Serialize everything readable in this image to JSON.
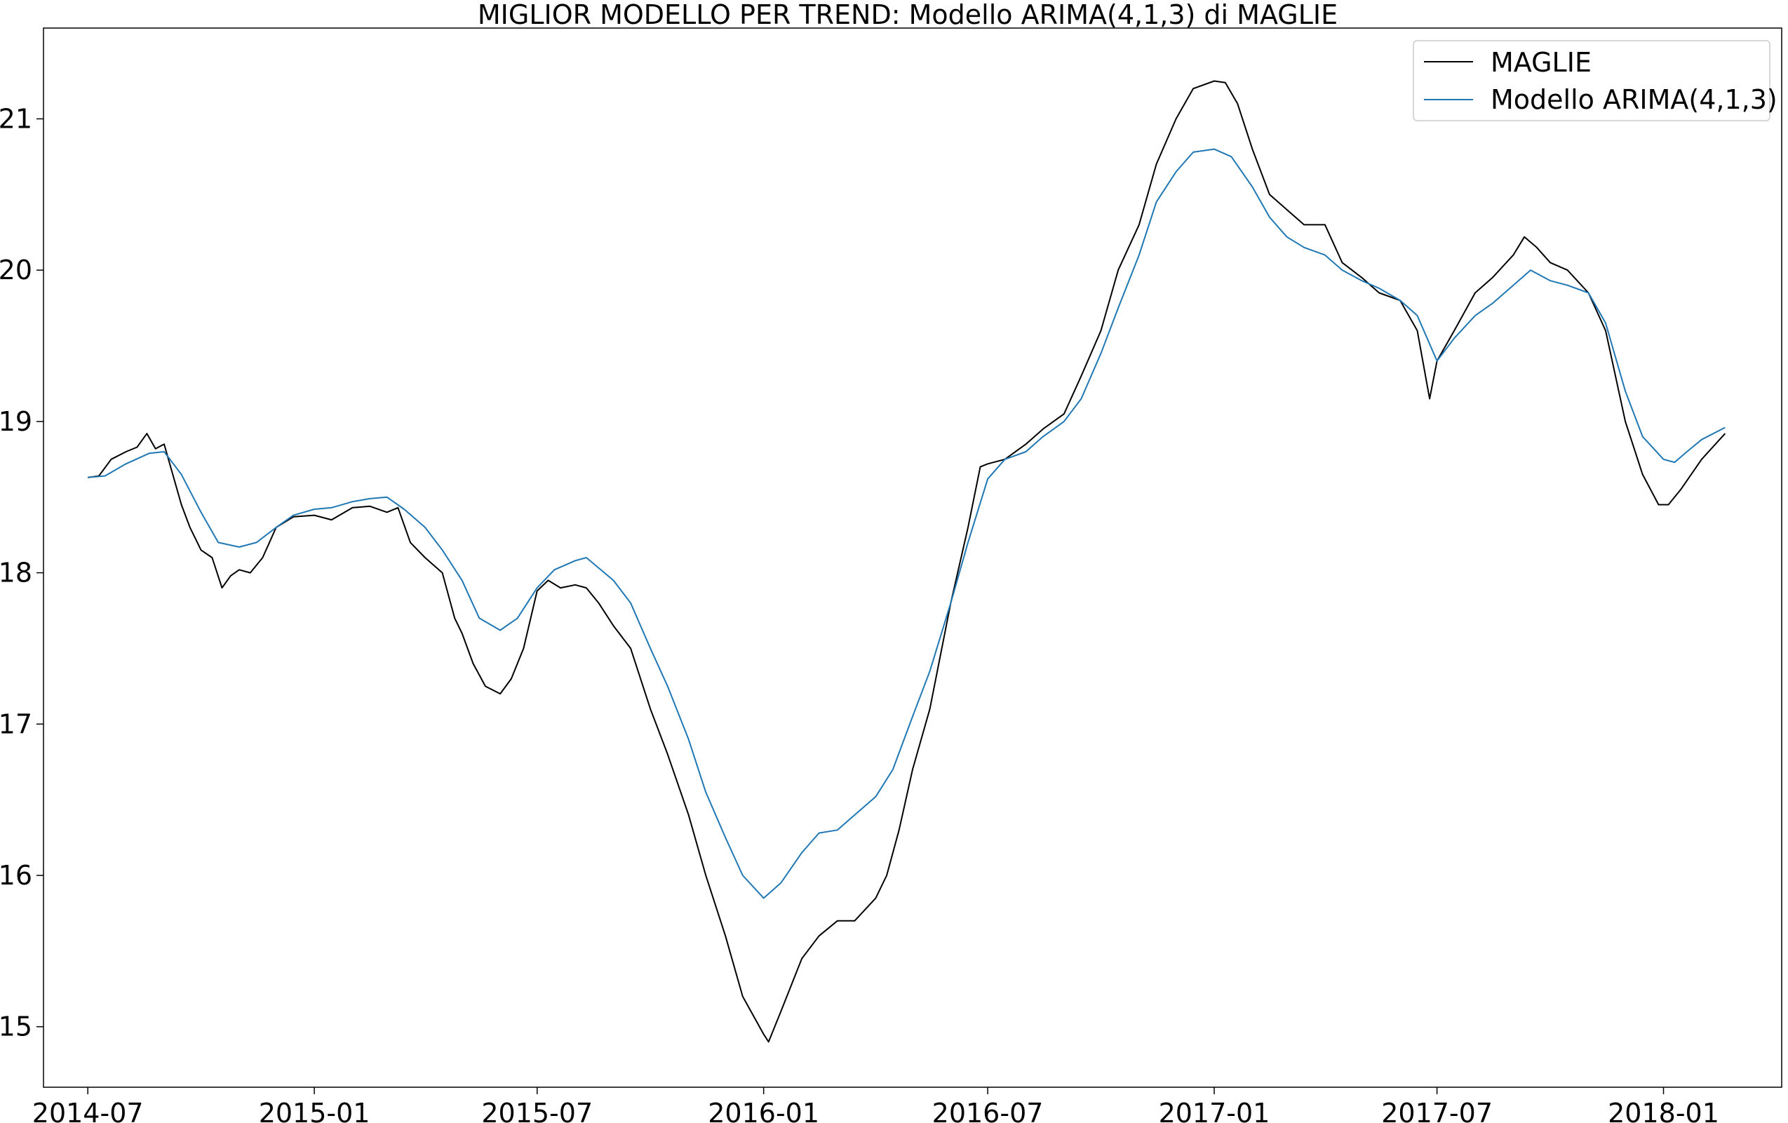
{
  "chart_data": {
    "type": "line",
    "title": "MIGLIOR MODELLO PER TREND: Modello ARIMA(4,1,3) di MAGLIE",
    "xlabel": "",
    "ylabel": "",
    "x_axis": {
      "scale": "date",
      "range": [
        "2014-05-26",
        "2018-04-07"
      ],
      "ticks": [
        "2014-07",
        "2015-01",
        "2015-07",
        "2016-01",
        "2016-07",
        "2017-01",
        "2017-07",
        "2018-01"
      ]
    },
    "y_axis": {
      "range": [
        14.6,
        21.6
      ],
      "ticks": [
        "15",
        "16",
        "17",
        "18",
        "19",
        "20",
        "21"
      ]
    },
    "grid": false,
    "legend": {
      "position": "top-right",
      "entries": [
        "MAGLIE",
        "Modello ARIMA(4,1,3)"
      ]
    },
    "colors": {
      "maglie": "#000000",
      "arima": "#1f77b4"
    },
    "series": [
      {
        "name": "MAGLIE",
        "color": "#000000",
        "points": [
          [
            "2014-07-01",
            18.63
          ],
          [
            "2014-07-10",
            18.64
          ],
          [
            "2014-07-20",
            18.75
          ],
          [
            "2014-08-01",
            18.8
          ],
          [
            "2014-08-10",
            18.83
          ],
          [
            "2014-08-18",
            18.92
          ],
          [
            "2014-08-25",
            18.82
          ],
          [
            "2014-09-01",
            18.85
          ],
          [
            "2014-09-08",
            18.65
          ],
          [
            "2014-09-15",
            18.45
          ],
          [
            "2014-09-22",
            18.3
          ],
          [
            "2014-10-01",
            18.15
          ],
          [
            "2014-10-10",
            18.1
          ],
          [
            "2014-10-18",
            17.9
          ],
          [
            "2014-10-25",
            17.98
          ],
          [
            "2014-11-01",
            18.02
          ],
          [
            "2014-11-10",
            18.0
          ],
          [
            "2014-11-20",
            18.1
          ],
          [
            "2014-12-01",
            18.3
          ],
          [
            "2014-12-15",
            18.37
          ],
          [
            "2015-01-01",
            18.38
          ],
          [
            "2015-01-15",
            18.35
          ],
          [
            "2015-02-01",
            18.43
          ],
          [
            "2015-02-15",
            18.44
          ],
          [
            "2015-03-01",
            18.4
          ],
          [
            "2015-03-10",
            18.43
          ],
          [
            "2015-03-20",
            18.2
          ],
          [
            "2015-04-01",
            18.1
          ],
          [
            "2015-04-15",
            18.0
          ],
          [
            "2015-04-25",
            17.7
          ],
          [
            "2015-05-01",
            17.6
          ],
          [
            "2015-05-10",
            17.4
          ],
          [
            "2015-05-20",
            17.25
          ],
          [
            "2015-06-01",
            17.2
          ],
          [
            "2015-06-10",
            17.3
          ],
          [
            "2015-06-20",
            17.5
          ],
          [
            "2015-07-01",
            17.88
          ],
          [
            "2015-07-10",
            17.95
          ],
          [
            "2015-07-20",
            17.9
          ],
          [
            "2015-08-01",
            17.92
          ],
          [
            "2015-08-10",
            17.9
          ],
          [
            "2015-08-20",
            17.8
          ],
          [
            "2015-09-01",
            17.65
          ],
          [
            "2015-09-15",
            17.5
          ],
          [
            "2015-10-01",
            17.1
          ],
          [
            "2015-10-15",
            16.8
          ],
          [
            "2015-11-01",
            16.4
          ],
          [
            "2015-11-15",
            16.0
          ],
          [
            "2015-12-01",
            15.6
          ],
          [
            "2015-12-15",
            15.2
          ],
          [
            "2016-01-01",
            14.95
          ],
          [
            "2016-01-05",
            14.9
          ],
          [
            "2016-01-15",
            15.1
          ],
          [
            "2016-02-01",
            15.45
          ],
          [
            "2016-02-15",
            15.6
          ],
          [
            "2016-03-01",
            15.7
          ],
          [
            "2016-03-15",
            15.7
          ],
          [
            "2016-04-01",
            15.85
          ],
          [
            "2016-04-10",
            16.0
          ],
          [
            "2016-04-20",
            16.3
          ],
          [
            "2016-05-01",
            16.7
          ],
          [
            "2016-05-15",
            17.1
          ],
          [
            "2016-06-01",
            17.8
          ],
          [
            "2016-06-15",
            18.3
          ],
          [
            "2016-06-25",
            18.7
          ],
          [
            "2016-07-01",
            18.72
          ],
          [
            "2016-07-15",
            18.75
          ],
          [
            "2016-08-01",
            18.85
          ],
          [
            "2016-08-15",
            18.95
          ],
          [
            "2016-09-01",
            19.05
          ],
          [
            "2016-09-15",
            19.3
          ],
          [
            "2016-10-01",
            19.6
          ],
          [
            "2016-10-15",
            20.0
          ],
          [
            "2016-11-01",
            20.3
          ],
          [
            "2016-11-15",
            20.7
          ],
          [
            "2016-12-01",
            21.0
          ],
          [
            "2016-12-15",
            21.2
          ],
          [
            "2017-01-01",
            21.25
          ],
          [
            "2017-01-10",
            21.24
          ],
          [
            "2017-01-20",
            21.1
          ],
          [
            "2017-02-01",
            20.8
          ],
          [
            "2017-02-15",
            20.5
          ],
          [
            "2017-03-01",
            20.4
          ],
          [
            "2017-03-15",
            20.3
          ],
          [
            "2017-04-01",
            20.3
          ],
          [
            "2017-04-15",
            20.05
          ],
          [
            "2017-05-01",
            19.95
          ],
          [
            "2017-05-15",
            19.85
          ],
          [
            "2017-06-01",
            19.8
          ],
          [
            "2017-06-15",
            19.6
          ],
          [
            "2017-06-25",
            19.15
          ],
          [
            "2017-07-01",
            19.4
          ],
          [
            "2017-07-15",
            19.6
          ],
          [
            "2017-08-01",
            19.85
          ],
          [
            "2017-08-15",
            19.95
          ],
          [
            "2017-09-01",
            20.1
          ],
          [
            "2017-09-10",
            20.22
          ],
          [
            "2017-09-20",
            20.15
          ],
          [
            "2017-10-01",
            20.05
          ],
          [
            "2017-10-15",
            20.0
          ],
          [
            "2017-11-01",
            19.85
          ],
          [
            "2017-11-15",
            19.6
          ],
          [
            "2017-12-01",
            19.0
          ],
          [
            "2017-12-15",
            18.65
          ],
          [
            "2017-12-28",
            18.45
          ],
          [
            "2018-01-05",
            18.45
          ],
          [
            "2018-01-15",
            18.55
          ],
          [
            "2018-02-01",
            18.75
          ],
          [
            "2018-02-20",
            18.92
          ]
        ]
      },
      {
        "name": "Modello ARIMA(4,1,3)",
        "color": "#1f77b4",
        "points": [
          [
            "2014-07-01",
            18.63
          ],
          [
            "2014-07-15",
            18.64
          ],
          [
            "2014-08-01",
            18.72
          ],
          [
            "2014-08-20",
            18.79
          ],
          [
            "2014-09-01",
            18.8
          ],
          [
            "2014-09-15",
            18.65
          ],
          [
            "2014-10-01",
            18.4
          ],
          [
            "2014-10-15",
            18.2
          ],
          [
            "2014-11-01",
            18.17
          ],
          [
            "2014-11-15",
            18.2
          ],
          [
            "2014-12-01",
            18.3
          ],
          [
            "2014-12-15",
            18.38
          ],
          [
            "2015-01-01",
            18.42
          ],
          [
            "2015-01-15",
            18.43
          ],
          [
            "2015-02-01",
            18.47
          ],
          [
            "2015-02-15",
            18.49
          ],
          [
            "2015-03-01",
            18.5
          ],
          [
            "2015-03-15",
            18.42
          ],
          [
            "2015-04-01",
            18.3
          ],
          [
            "2015-04-15",
            18.15
          ],
          [
            "2015-05-01",
            17.95
          ],
          [
            "2015-05-15",
            17.7
          ],
          [
            "2015-06-01",
            17.62
          ],
          [
            "2015-06-15",
            17.7
          ],
          [
            "2015-07-01",
            17.9
          ],
          [
            "2015-07-15",
            18.02
          ],
          [
            "2015-08-01",
            18.08
          ],
          [
            "2015-08-10",
            18.1
          ],
          [
            "2015-09-01",
            17.95
          ],
          [
            "2015-09-15",
            17.8
          ],
          [
            "2015-10-01",
            17.5
          ],
          [
            "2015-10-15",
            17.25
          ],
          [
            "2015-11-01",
            16.9
          ],
          [
            "2015-11-15",
            16.55
          ],
          [
            "2015-12-01",
            16.25
          ],
          [
            "2015-12-15",
            16.0
          ],
          [
            "2016-01-01",
            15.85
          ],
          [
            "2016-01-15",
            15.95
          ],
          [
            "2016-02-01",
            16.15
          ],
          [
            "2016-02-15",
            16.28
          ],
          [
            "2016-03-01",
            16.3
          ],
          [
            "2016-03-15",
            16.4
          ],
          [
            "2016-04-01",
            16.52
          ],
          [
            "2016-04-15",
            16.7
          ],
          [
            "2016-05-01",
            17.05
          ],
          [
            "2016-05-15",
            17.35
          ],
          [
            "2016-06-01",
            17.8
          ],
          [
            "2016-06-15",
            18.2
          ],
          [
            "2016-07-01",
            18.62
          ],
          [
            "2016-07-15",
            18.75
          ],
          [
            "2016-08-01",
            18.8
          ],
          [
            "2016-08-15",
            18.9
          ],
          [
            "2016-09-01",
            19.0
          ],
          [
            "2016-09-15",
            19.15
          ],
          [
            "2016-10-01",
            19.45
          ],
          [
            "2016-10-15",
            19.75
          ],
          [
            "2016-11-01",
            20.1
          ],
          [
            "2016-11-15",
            20.45
          ],
          [
            "2016-12-01",
            20.65
          ],
          [
            "2016-12-15",
            20.78
          ],
          [
            "2017-01-01",
            20.8
          ],
          [
            "2017-01-15",
            20.75
          ],
          [
            "2017-02-01",
            20.55
          ],
          [
            "2017-02-15",
            20.35
          ],
          [
            "2017-03-01",
            20.22
          ],
          [
            "2017-03-15",
            20.15
          ],
          [
            "2017-04-01",
            20.1
          ],
          [
            "2017-04-15",
            20.0
          ],
          [
            "2017-05-01",
            19.93
          ],
          [
            "2017-05-15",
            19.88
          ],
          [
            "2017-06-01",
            19.8
          ],
          [
            "2017-06-15",
            19.7
          ],
          [
            "2017-07-01",
            19.4
          ],
          [
            "2017-07-15",
            19.55
          ],
          [
            "2017-08-01",
            19.7
          ],
          [
            "2017-08-15",
            19.78
          ],
          [
            "2017-09-01",
            19.9
          ],
          [
            "2017-09-15",
            20.0
          ],
          [
            "2017-10-01",
            19.93
          ],
          [
            "2017-10-15",
            19.9
          ],
          [
            "2017-11-01",
            19.85
          ],
          [
            "2017-11-15",
            19.65
          ],
          [
            "2017-12-01",
            19.2
          ],
          [
            "2017-12-15",
            18.9
          ],
          [
            "2018-01-01",
            18.75
          ],
          [
            "2018-01-10",
            18.73
          ],
          [
            "2018-01-20",
            18.8
          ],
          [
            "2018-02-01",
            18.88
          ],
          [
            "2018-02-20",
            18.96
          ]
        ]
      }
    ]
  }
}
